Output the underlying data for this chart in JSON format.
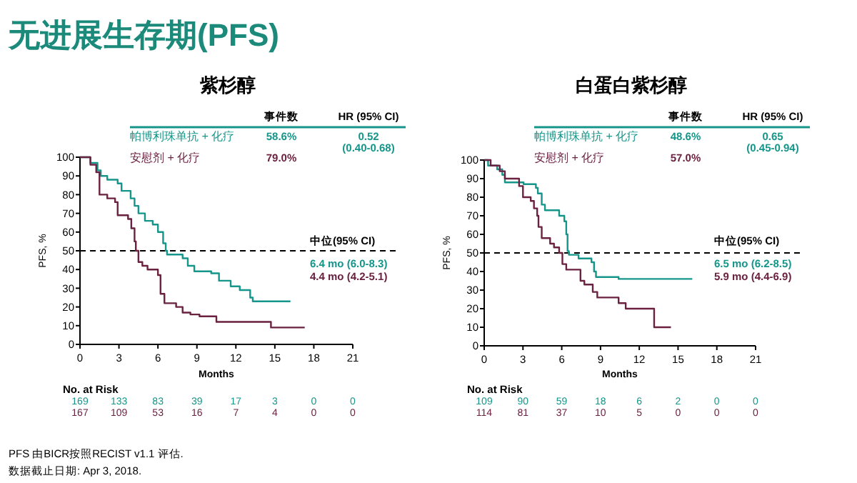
{
  "chart_data": [
    {
      "type": "step",
      "title": "无进展生存期(PFS)",
      "subtitle": "紫杉醇",
      "xlabel": "Months",
      "ylabel": "PFS, %",
      "xlim": [
        0,
        21
      ],
      "ylim": [
        0,
        100
      ],
      "xticks": [
        0,
        3,
        6,
        9,
        12,
        15,
        18,
        21
      ],
      "yticks": [
        0,
        10,
        20,
        30,
        40,
        50,
        60,
        70,
        80,
        90,
        100
      ],
      "legend": "top",
      "series": [
        {
          "name": "帕博利珠单抗 + 化疗",
          "color": "#16968a",
          "x": [
            0,
            0.8,
            1.35,
            1.6,
            2.1,
            2.9,
            3.2,
            3.9,
            4.2,
            4.5,
            5.0,
            5.6,
            6.0,
            6.4,
            6.6,
            6.7,
            7.9,
            8.3,
            8.8,
            10.1,
            10.7,
            11.6,
            12.3,
            13.1,
            13.3,
            16.2
          ],
          "values": [
            100,
            97,
            93,
            90,
            88,
            86,
            82,
            78,
            74,
            70,
            66,
            64,
            60,
            54,
            50,
            48,
            46,
            42,
            39,
            38,
            34,
            31,
            29,
            25,
            23,
            23
          ]
        },
        {
          "name": "安慰剂 + 化疗",
          "color": "#6b2140",
          "x": [
            0,
            0.8,
            1.25,
            1.5,
            2.1,
            2.7,
            2.9,
            3.7,
            3.95,
            4.2,
            4.3,
            4.5,
            4.8,
            5.2,
            6.0,
            6.2,
            6.5,
            7.4,
            7.9,
            8.5,
            9.2,
            10.5,
            14.7,
            17.3
          ],
          "values": [
            100,
            96,
            92,
            80,
            78,
            76,
            69,
            67,
            62,
            55,
            50,
            44,
            42,
            40,
            37,
            27,
            22,
            20,
            17,
            16,
            15,
            12,
            9,
            9
          ]
        }
      ],
      "ref_lines": [
        {
          "axis": "y",
          "value": 50,
          "line_style": "dashed",
          "color": "#000000"
        }
      ],
      "annotations": [
        "事件数",
        "HR (95% CI)",
        "58.6%",
        "0.52",
        "(0.40-0.68)",
        "79.0%",
        "中位(95% CI)",
        "6.4 mo (6.0-8.3)",
        "4.4 mo (4.2-5.1)",
        "No. at Risk",
        "169 133 83 39 17 3 0 0",
        "167 109 53 16 7 4 0 0",
        "PFS 由BICR按照RECIST v1.1 评估.",
        "数据截止日期: Apr 3, 2018."
      ]
    },
    {
      "type": "step",
      "subtitle": "白蛋白紫杉醇",
      "xlabel": "Months",
      "ylabel": "PFS, %",
      "xlim": [
        0,
        21
      ],
      "ylim": [
        0,
        100
      ],
      "xticks": [
        0,
        3,
        6,
        9,
        12,
        15,
        18,
        21
      ],
      "yticks": [
        0,
        10,
        20,
        30,
        40,
        50,
        60,
        70,
        80,
        90,
        100
      ],
      "legend": "top",
      "series": [
        {
          "name": "帕博利珠单抗 + 化疗",
          "color": "#16968a",
          "x": [
            0,
            0.3,
            1.0,
            1.4,
            1.6,
            3.05,
            4.0,
            4.15,
            4.45,
            4.7,
            5.8,
            6.2,
            6.35,
            6.45,
            6.55,
            7.3,
            8.3,
            8.5,
            8.65,
            10.4,
            16.1
          ],
          "values": [
            100,
            97,
            95,
            92,
            88,
            87,
            85,
            82,
            76,
            73,
            70,
            67,
            60,
            51,
            49,
            47,
            45,
            40,
            37,
            36,
            36
          ]
        },
        {
          "name": "安慰剂 + 化疗",
          "color": "#6b2140",
          "x": [
            0,
            0.5,
            1.2,
            1.6,
            2.7,
            3.0,
            3.6,
            3.85,
            4.1,
            4.2,
            4.45,
            5.1,
            5.4,
            5.8,
            6.05,
            6.35,
            7.45,
            7.75,
            8.4,
            8.75,
            10.4,
            10.95,
            13.15,
            14.45
          ],
          "values": [
            100,
            97,
            94,
            90,
            86,
            80,
            78,
            74,
            70,
            64,
            58,
            55,
            53,
            50,
            44,
            41,
            35,
            33,
            29,
            26,
            23,
            20,
            10,
            10
          ]
        }
      ],
      "ref_lines": [
        {
          "axis": "y",
          "value": 50,
          "line_style": "dashed",
          "color": "#000000"
        }
      ],
      "annotations": [
        "事件数",
        "HR (95% CI)",
        "48.6%",
        "0.65",
        "(0.45-0.94)",
        "57.0%",
        "中位(95% CI)",
        "6.5 mo (6.2-8.5)",
        "5.9 mo (4.4-6.9)",
        "No. at Risk",
        "109 90 59 18 6 2 0 0",
        "114 81 37 10 5 0 0 0"
      ]
    }
  ]
}
